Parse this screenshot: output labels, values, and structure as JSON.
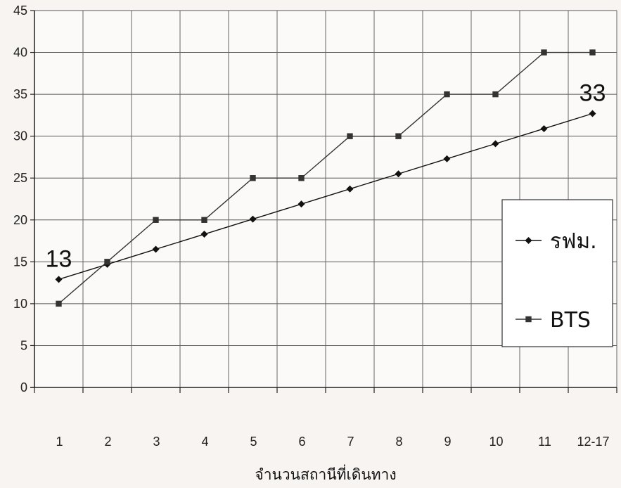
{
  "chart_data": {
    "type": "line",
    "categories": [
      "1",
      "2",
      "3",
      "4",
      "5",
      "6",
      "7",
      "8",
      "9",
      "10",
      "11",
      "12-17"
    ],
    "series": [
      {
        "name": "รฟม.",
        "marker": "diamond",
        "color": "#111111",
        "values": [
          12.9,
          14.7,
          16.5,
          18.3,
          20.1,
          21.9,
          23.7,
          25.5,
          27.3,
          29.1,
          30.9,
          32.7
        ]
      },
      {
        "name": "BTS",
        "marker": "square",
        "color": "#333333",
        "step": true,
        "values": [
          10,
          15,
          20,
          20,
          25,
          25,
          30,
          30,
          35,
          35,
          40,
          40
        ]
      }
    ],
    "title": "",
    "xlabel": "จำนวนสถานีที่เดินทาง",
    "ylabel": "",
    "ylim": [
      0,
      45
    ],
    "yticks": [
      "0",
      "5",
      "10",
      "15",
      "20",
      "25",
      "30",
      "35",
      "40",
      "45"
    ],
    "grid": true,
    "legend": "right",
    "annotations": [
      {
        "text": "13",
        "series": 0,
        "index": 0
      },
      {
        "text": "33",
        "series": 0,
        "index": 11
      }
    ]
  }
}
